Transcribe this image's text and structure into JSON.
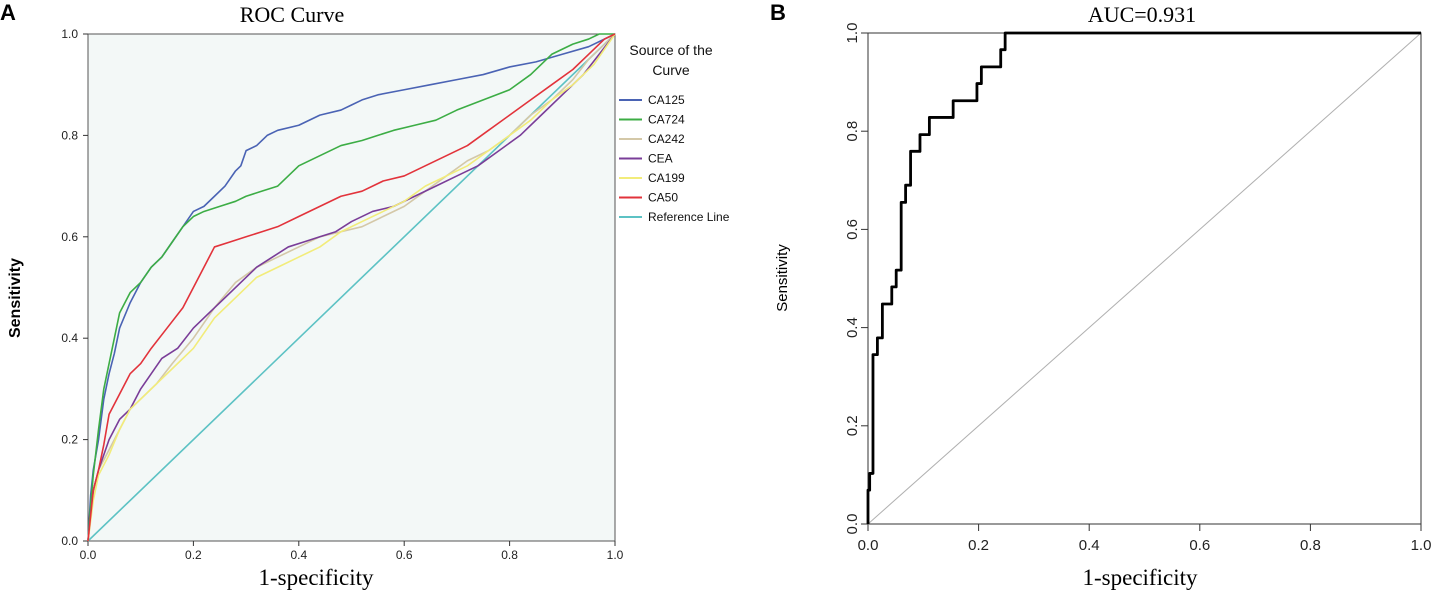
{
  "chart_data": [
    {
      "panel": "A",
      "type": "line",
      "title": "ROC Curve",
      "xlabel": "1-specificity",
      "ylabel": "Sensitivity",
      "xlim": [
        0,
        1
      ],
      "ylim": [
        0,
        1
      ],
      "xticks": [
        "0.0",
        "0.2",
        "0.4",
        "0.6",
        "0.8",
        "1.0"
      ],
      "yticks": [
        "0.0",
        "0.2",
        "0.4",
        "0.6",
        "0.8",
        "1.0"
      ],
      "grid": false,
      "background": "#f3f8f7",
      "legend": {
        "position": "right",
        "title_lines": [
          "Source of the",
          "Curve"
        ]
      },
      "series": [
        {
          "name": "CA125",
          "color": "#4a63b4",
          "x": [
            0,
            0.005,
            0.01,
            0.02,
            0.03,
            0.04,
            0.05,
            0.06,
            0.08,
            0.1,
            0.12,
            0.14,
            0.16,
            0.18,
            0.2,
            0.22,
            0.24,
            0.26,
            0.28,
            0.29,
            0.3,
            0.32,
            0.34,
            0.36,
            0.4,
            0.44,
            0.48,
            0.5,
            0.52,
            0.55,
            0.6,
            0.65,
            0.7,
            0.75,
            0.8,
            0.85,
            0.9,
            0.95,
            1.0
          ],
          "y": [
            0,
            0.09,
            0.14,
            0.2,
            0.28,
            0.33,
            0.37,
            0.42,
            0.47,
            0.51,
            0.54,
            0.56,
            0.59,
            0.62,
            0.65,
            0.66,
            0.68,
            0.7,
            0.73,
            0.74,
            0.77,
            0.78,
            0.8,
            0.81,
            0.82,
            0.84,
            0.85,
            0.86,
            0.87,
            0.88,
            0.89,
            0.9,
            0.91,
            0.92,
            0.935,
            0.945,
            0.96,
            0.975,
            1.0
          ]
        },
        {
          "name": "CA724",
          "color": "#3cad45",
          "x": [
            0,
            0.005,
            0.01,
            0.02,
            0.03,
            0.04,
            0.05,
            0.06,
            0.08,
            0.1,
            0.12,
            0.14,
            0.16,
            0.18,
            0.2,
            0.22,
            0.25,
            0.28,
            0.3,
            0.33,
            0.36,
            0.4,
            0.44,
            0.48,
            0.52,
            0.55,
            0.58,
            0.62,
            0.66,
            0.7,
            0.75,
            0.8,
            0.84,
            0.88,
            0.92,
            0.95,
            0.97,
            1.0
          ],
          "y": [
            0,
            0.07,
            0.13,
            0.22,
            0.3,
            0.35,
            0.4,
            0.45,
            0.49,
            0.51,
            0.54,
            0.56,
            0.59,
            0.62,
            0.64,
            0.65,
            0.66,
            0.67,
            0.68,
            0.69,
            0.7,
            0.74,
            0.76,
            0.78,
            0.79,
            0.8,
            0.81,
            0.82,
            0.83,
            0.85,
            0.87,
            0.89,
            0.92,
            0.96,
            0.98,
            0.99,
            1.0,
            1.0
          ]
        },
        {
          "name": "CA242",
          "color": "#d4c8a8",
          "x": [
            0,
            0.01,
            0.02,
            0.04,
            0.06,
            0.08,
            0.1,
            0.13,
            0.16,
            0.2,
            0.24,
            0.28,
            0.32,
            0.36,
            0.4,
            0.44,
            0.48,
            0.52,
            0.56,
            0.6,
            0.64,
            0.68,
            0.72,
            0.76,
            0.8,
            0.84,
            0.88,
            0.92,
            0.95,
            0.98,
            1.0
          ],
          "y": [
            0,
            0.09,
            0.14,
            0.18,
            0.22,
            0.26,
            0.28,
            0.31,
            0.35,
            0.4,
            0.46,
            0.51,
            0.54,
            0.56,
            0.58,
            0.6,
            0.61,
            0.62,
            0.64,
            0.66,
            0.69,
            0.72,
            0.75,
            0.77,
            0.8,
            0.84,
            0.87,
            0.91,
            0.95,
            0.98,
            1.0
          ]
        },
        {
          "name": "CEA",
          "color": "#7a3d98",
          "x": [
            0,
            0.01,
            0.02,
            0.04,
            0.06,
            0.08,
            0.1,
            0.12,
            0.14,
            0.17,
            0.2,
            0.23,
            0.26,
            0.29,
            0.32,
            0.35,
            0.38,
            0.41,
            0.44,
            0.47,
            0.5,
            0.54,
            0.58,
            0.62,
            0.66,
            0.7,
            0.74,
            0.78,
            0.82,
            0.86,
            0.9,
            0.94,
            0.97,
            1.0
          ],
          "y": [
            0,
            0.1,
            0.14,
            0.2,
            0.24,
            0.26,
            0.3,
            0.33,
            0.36,
            0.38,
            0.42,
            0.45,
            0.48,
            0.51,
            0.54,
            0.56,
            0.58,
            0.59,
            0.6,
            0.61,
            0.63,
            0.65,
            0.66,
            0.68,
            0.7,
            0.72,
            0.74,
            0.77,
            0.8,
            0.84,
            0.88,
            0.92,
            0.96,
            1.0
          ]
        },
        {
          "name": "CA199",
          "color": "#f2ec7a",
          "x": [
            0,
            0.01,
            0.02,
            0.04,
            0.06,
            0.08,
            0.1,
            0.13,
            0.16,
            0.2,
            0.24,
            0.28,
            0.32,
            0.36,
            0.4,
            0.44,
            0.48,
            0.52,
            0.56,
            0.6,
            0.64,
            0.68,
            0.72,
            0.76,
            0.8,
            0.84,
            0.88,
            0.92,
            0.96,
            1.0
          ],
          "y": [
            0,
            0.08,
            0.13,
            0.17,
            0.22,
            0.26,
            0.28,
            0.31,
            0.34,
            0.38,
            0.44,
            0.48,
            0.52,
            0.54,
            0.56,
            0.58,
            0.61,
            0.63,
            0.65,
            0.67,
            0.7,
            0.72,
            0.74,
            0.77,
            0.8,
            0.83,
            0.87,
            0.9,
            0.94,
            1.0
          ]
        },
        {
          "name": "CA50",
          "color": "#e2333b",
          "x": [
            0,
            0.005,
            0.01,
            0.02,
            0.03,
            0.04,
            0.06,
            0.08,
            0.1,
            0.12,
            0.15,
            0.18,
            0.2,
            0.22,
            0.24,
            0.27,
            0.3,
            0.33,
            0.36,
            0.4,
            0.44,
            0.48,
            0.52,
            0.56,
            0.6,
            0.64,
            0.68,
            0.72,
            0.76,
            0.8,
            0.84,
            0.88,
            0.92,
            0.95,
            0.98,
            1.0
          ],
          "y": [
            0,
            0.05,
            0.1,
            0.14,
            0.19,
            0.25,
            0.29,
            0.33,
            0.35,
            0.38,
            0.42,
            0.46,
            0.5,
            0.54,
            0.58,
            0.59,
            0.6,
            0.61,
            0.62,
            0.64,
            0.66,
            0.68,
            0.69,
            0.71,
            0.72,
            0.74,
            0.76,
            0.78,
            0.81,
            0.84,
            0.87,
            0.9,
            0.93,
            0.96,
            0.99,
            1.0
          ]
        },
        {
          "name": "Reference Line",
          "color": "#5cc2c4",
          "x": [
            0,
            1
          ],
          "y": [
            0,
            1
          ]
        }
      ]
    },
    {
      "panel": "B",
      "type": "line",
      "title": "AUC=0.931",
      "xlabel": "1-specificity",
      "ylabel": "Sensitivity",
      "xlim": [
        0,
        1
      ],
      "ylim": [
        0,
        1
      ],
      "xticks": [
        "0.0",
        "0.2",
        "0.4",
        "0.6",
        "0.8",
        "1.0"
      ],
      "yticks": [
        "0.0",
        "0.2",
        "0.4",
        "0.6",
        "0.8",
        "1.0"
      ],
      "grid": false,
      "series": [
        {
          "name": "ROC",
          "color": "#000000",
          "step": true,
          "x": [
            0,
            0,
            0.003,
            0.003,
            0.009,
            0.009,
            0.017,
            0.017,
            0.026,
            0.026,
            0.043,
            0.043,
            0.051,
            0.051,
            0.06,
            0.06,
            0.068,
            0.068,
            0.077,
            0.077,
            0.094,
            0.094,
            0.111,
            0.111,
            0.154,
            0.154,
            0.197,
            0.197,
            0.205,
            0.205,
            0.24,
            0.24,
            0.248,
            0.248,
            0.256,
            0.256,
            1.0
          ],
          "y": [
            0,
            0.069,
            0.069,
            0.103,
            0.103,
            0.345,
            0.345,
            0.379,
            0.379,
            0.448,
            0.448,
            0.483,
            0.483,
            0.517,
            0.517,
            0.655,
            0.655,
            0.69,
            0.69,
            0.759,
            0.759,
            0.793,
            0.793,
            0.828,
            0.828,
            0.862,
            0.862,
            0.897,
            0.897,
            0.931,
            0.931,
            0.966,
            0.966,
            1.0,
            1.0,
            1.0,
            1.0
          ]
        },
        {
          "name": "Diagonal",
          "color": "#b0b0b0",
          "x": [
            0,
            1
          ],
          "y": [
            0,
            1
          ]
        }
      ]
    }
  ],
  "panels": {
    "a": {
      "letter": "A",
      "legend_entries": [
        "CA125",
        "CA724",
        "CA242",
        "CEA",
        "CA199",
        "CA50",
        "Reference Line"
      ]
    },
    "b": {
      "letter": "B"
    }
  }
}
